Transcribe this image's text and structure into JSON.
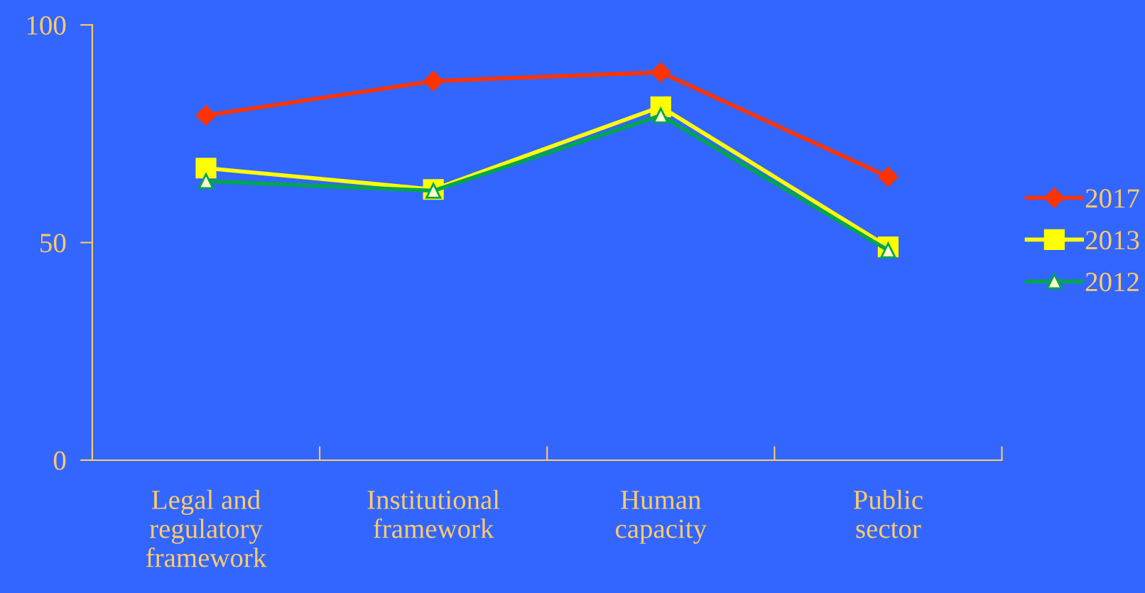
{
  "chart_data": {
    "type": "line",
    "categories": [
      "Legal and\nregulatory\nframework",
      "Institutional\nframework",
      "Human\ncapacity",
      "Public\nsector"
    ],
    "series": [
      {
        "name": "2017",
        "color": "#ff3300",
        "marker": "diamond",
        "values": [
          79.2,
          87.1,
          89.1,
          65.1
        ]
      },
      {
        "name": "2013",
        "color": "#ffff00",
        "marker": "square",
        "values": [
          67.1,
          62.2,
          81.2,
          49.0
        ]
      },
      {
        "name": "2012",
        "color": "#00a550",
        "marker": "triangle",
        "values": [
          64.1,
          61.9,
          79.2,
          48.2
        ]
      }
    ],
    "ylim": [
      0,
      100
    ],
    "yticks": [
      0,
      50,
      100
    ],
    "grid": false,
    "legend": "right",
    "line_style": "solid"
  }
}
